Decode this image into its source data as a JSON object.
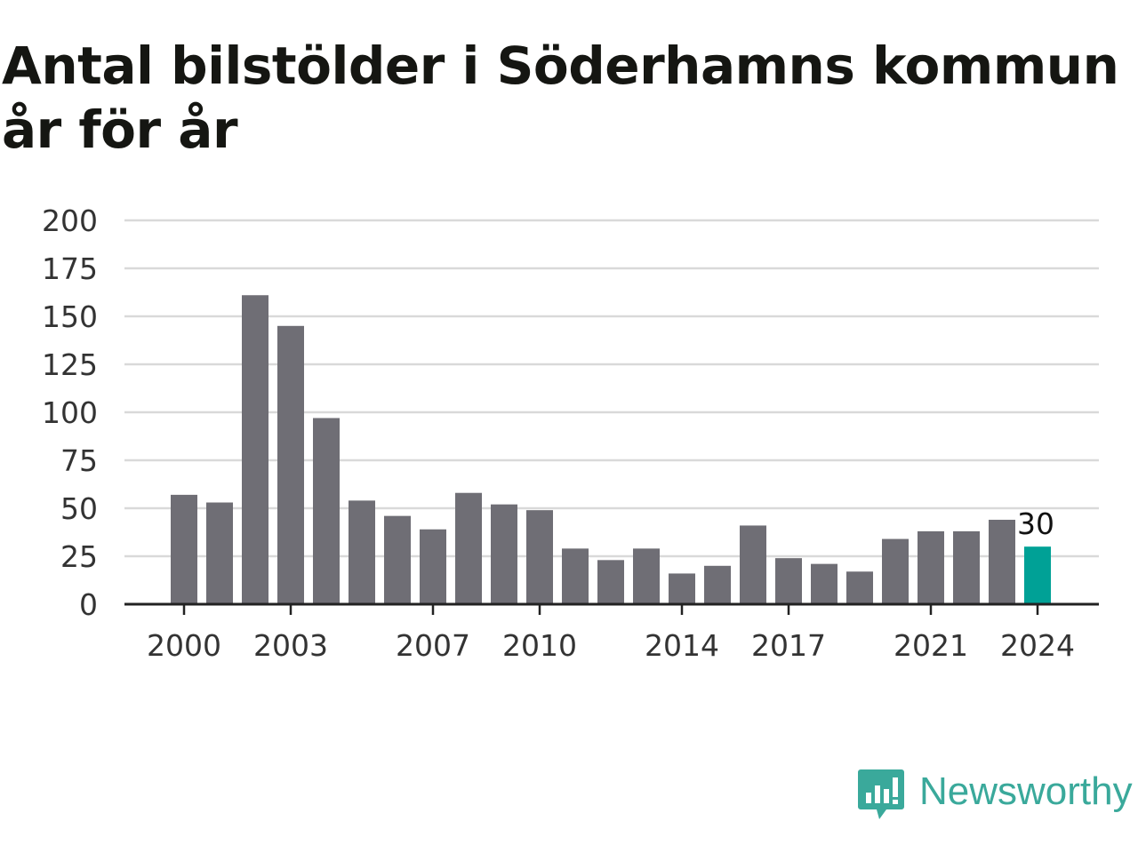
{
  "title": "Antal bilstölder i Söderhamns kommun år för år",
  "brand": "Newsworthy",
  "colors": {
    "bar": "#6f6e75",
    "highlight": "#00a196",
    "grid": "#d9d9d9",
    "axis": "#222222",
    "text": "#333333",
    "brand": "#3aa99b"
  },
  "chart_data": {
    "type": "bar",
    "categories": [
      "2000",
      "2001",
      "2002",
      "2003",
      "2004",
      "2005",
      "2006",
      "2007",
      "2008",
      "2009",
      "2010",
      "2011",
      "2012",
      "2013",
      "2014",
      "2015",
      "2016",
      "2017",
      "2018",
      "2019",
      "2020",
      "2021",
      "2022",
      "2023",
      "2024"
    ],
    "values": [
      57,
      53,
      161,
      145,
      97,
      54,
      46,
      39,
      58,
      52,
      49,
      29,
      23,
      29,
      16,
      20,
      41,
      24,
      21,
      17,
      34,
      38,
      38,
      44,
      30
    ],
    "highlight_index": 24,
    "highlight_label": "30",
    "ylim": [
      0,
      200
    ],
    "yticks": [
      "0",
      "25",
      "50",
      "75",
      "100",
      "125",
      "150",
      "175",
      "200"
    ],
    "xtick_labels": [
      "2000",
      "2003",
      "2007",
      "2010",
      "2014",
      "2017",
      "2021",
      "2024"
    ],
    "grid": true
  }
}
